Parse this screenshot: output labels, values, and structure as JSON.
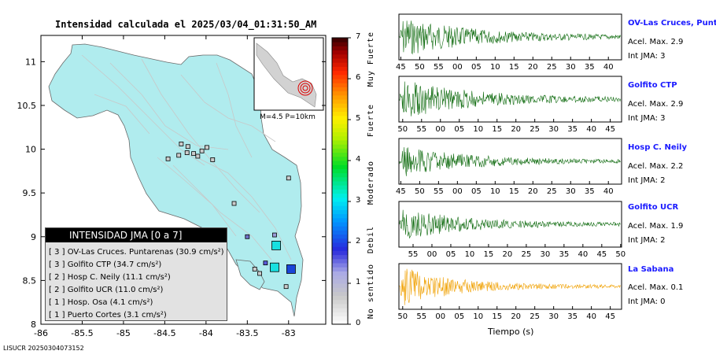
{
  "title": "Intensidad calculada el 2025/03/04_01:31:50_AM",
  "footer_id": "LISUCR 20250304073152",
  "inset_label": "M=4.5 P=10km",
  "legend": {
    "header": "INTENSIDAD JMA [0 a 7]",
    "rows": [
      {
        "level": "[ 3 ]",
        "text": "OV-Las Cruces. Puntarenas (30.9 cm/s²)"
      },
      {
        "level": "[ 3 ]",
        "text": "Golfito CTP (34.7 cm/s²)"
      },
      {
        "level": "[ 2 ]",
        "text": "Hosp C. Neily (11.1 cm/s²)"
      },
      {
        "level": "[ 2 ]",
        "text": "Golfito UCR (11.0 cm/s²)"
      },
      {
        "level": "[ 1 ]",
        "text": "Hosp. Osa (4.1 cm/s²)"
      },
      {
        "level": "[ 1 ]",
        "text": "Puerto Cortes (3.1 cm/s²)"
      }
    ]
  },
  "intensity_scale": {
    "ticks": [
      "0",
      "1",
      "2",
      "3",
      "4",
      "5",
      "6",
      "7"
    ],
    "categories": [
      "No sentido",
      "Debil",
      "Moderado",
      "Fuerte",
      "Muy Fuerte"
    ]
  },
  "time_axis_label": "Tiempo (s)",
  "stations": [
    {
      "name": "OV-Las Cruces, Puntar",
      "accel": "Acel. Max. 2.9",
      "jma": "Int JMA: 3",
      "color": "#0f6b0f",
      "ticks": [
        "45",
        "50",
        "55",
        "00",
        "05",
        "10",
        "15",
        "20",
        "25",
        "30",
        "35",
        "40"
      ]
    },
    {
      "name": "Golfito CTP",
      "accel": "Acel. Max. 2.9",
      "jma": "Int JMA: 3",
      "color": "#0f6b0f",
      "ticks": [
        "50",
        "55",
        "00",
        "05",
        "10",
        "15",
        "20",
        "25",
        "30",
        "35",
        "40",
        "45"
      ]
    },
    {
      "name": "Hosp C. Neily",
      "accel": "Acel. Max. 2.2",
      "jma": "Int JMA: 2",
      "color": "#0f6b0f",
      "ticks": [
        "45",
        "50",
        "55",
        "00",
        "05",
        "10",
        "15",
        "20",
        "25",
        "30",
        "35",
        "40"
      ]
    },
    {
      "name": "Golfito UCR",
      "accel": "Acel. Max. 1.9",
      "jma": "Int JMA: 2",
      "color": "#0f6b0f",
      "ticks": [
        "55",
        "00",
        "05",
        "10",
        "15",
        "20",
        "25",
        "30",
        "35",
        "40",
        "45",
        "50"
      ]
    },
    {
      "name": "La Sabana",
      "accel": "Acel. Max. 0.1",
      "jma": "Int JMA: 0",
      "color": "#f0a000",
      "ticks": [
        "50",
        "55",
        "00",
        "05",
        "10",
        "15",
        "20",
        "25",
        "30",
        "35",
        "40",
        "45"
      ]
    }
  ],
  "chart_data": {
    "type": "scatter",
    "title": "Intensidad calculada el 2025/03/04_01:31:50_AM",
    "xlabel": "",
    "ylabel": "",
    "xlim": [
      -86.0,
      -82.55
    ],
    "ylim": [
      8.0,
      11.3
    ],
    "x_ticks": [
      "-86",
      "-85.5",
      "-85",
      "-84.5",
      "-84",
      "-83.5",
      "-83"
    ],
    "y_ticks": [
      "8",
      "8.5",
      "9",
      "9.5",
      "10",
      "10.5",
      "11"
    ],
    "colorbar": {
      "min": 0,
      "max": 7
    },
    "series": [
      {
        "name": "stations",
        "points": [
          {
            "x": -82.97,
            "y": 8.63,
            "jma": 3,
            "size": "large",
            "color": "#1a46d8"
          },
          {
            "x": -83.15,
            "y": 8.9,
            "jma": 3,
            "size": "large",
            "color": "#18e0e0"
          },
          {
            "x": -83.17,
            "y": 8.65,
            "jma": 2,
            "size": "large",
            "color": "#18e0e0"
          },
          {
            "x": -83.28,
            "y": 8.7,
            "jma": 2,
            "size": "small",
            "color": "#5a5ad8"
          },
          {
            "x": -83.17,
            "y": 9.02,
            "jma": 1,
            "size": "small",
            "color": "#9a9ad8"
          },
          {
            "x": -83.5,
            "y": 9.0,
            "jma": 1,
            "size": "small",
            "color": "#7070c8"
          },
          {
            "x": -83.66,
            "y": 9.38,
            "jma": 0,
            "size": "small",
            "color": "#cccccc"
          },
          {
            "x": -83.0,
            "y": 9.67,
            "jma": 0,
            "size": "small",
            "color": "#cccccc"
          },
          {
            "x": -83.99,
            "y": 10.02,
            "jma": 0,
            "size": "small",
            "color": "#cccccc"
          },
          {
            "x": -84.05,
            "y": 9.98,
            "jma": 0,
            "size": "small",
            "color": "#cccccc"
          },
          {
            "x": -84.15,
            "y": 9.95,
            "jma": 0,
            "size": "small",
            "color": "#cccccc"
          },
          {
            "x": -84.1,
            "y": 9.92,
            "jma": 0,
            "size": "small",
            "color": "#cccccc"
          },
          {
            "x": -84.23,
            "y": 9.96,
            "jma": 0,
            "size": "small",
            "color": "#cccccc"
          },
          {
            "x": -84.33,
            "y": 9.93,
            "jma": 0,
            "size": "small",
            "color": "#cccccc"
          },
          {
            "x": -84.3,
            "y": 10.06,
            "jma": 0,
            "size": "small",
            "color": "#cccccc"
          },
          {
            "x": -84.22,
            "y": 10.03,
            "jma": 0,
            "size": "small",
            "color": "#cccccc"
          },
          {
            "x": -83.92,
            "y": 9.88,
            "jma": 0,
            "size": "small",
            "color": "#cccccc"
          },
          {
            "x": -84.46,
            "y": 9.89,
            "jma": 0,
            "size": "small",
            "color": "#cccccc"
          },
          {
            "x": -83.03,
            "y": 8.43,
            "jma": 0,
            "size": "small",
            "color": "#cccccc"
          },
          {
            "x": -83.41,
            "y": 8.63,
            "jma": 0,
            "size": "small",
            "color": "#cccccc"
          },
          {
            "x": -83.35,
            "y": 8.58,
            "jma": 0,
            "size": "small",
            "color": "#cccccc"
          }
        ]
      }
    ]
  }
}
